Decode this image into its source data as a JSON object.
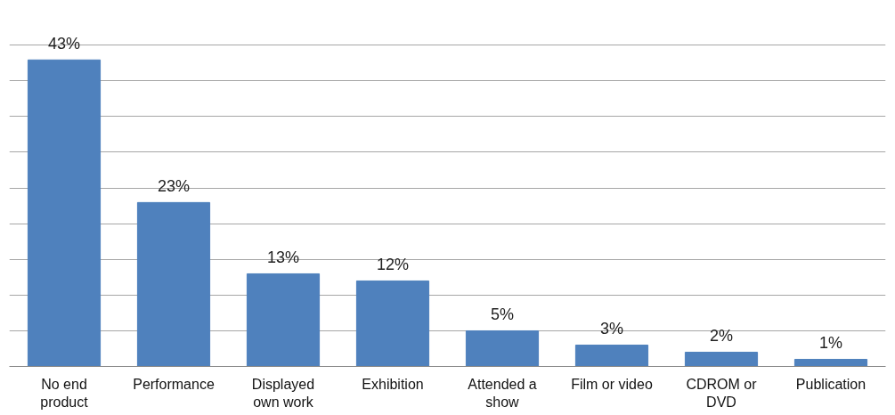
{
  "chart_data": {
    "type": "bar",
    "categories": [
      "No end\nproduct",
      "Performance",
      "Displayed\nown work",
      "Exhibition",
      "Attended a\nshow",
      "Film or video",
      "CDROM or\nDVD",
      "Publication"
    ],
    "values": [
      43,
      23,
      13,
      12,
      5,
      3,
      2,
      1
    ],
    "color": "#4f81bd",
    "data_labels": true,
    "value_labels": [
      "43%",
      "23%",
      "13%",
      "12%",
      "5%",
      "3%",
      "2%",
      "1%"
    ],
    "grid": "y",
    "tick_labels": "x"
  }
}
